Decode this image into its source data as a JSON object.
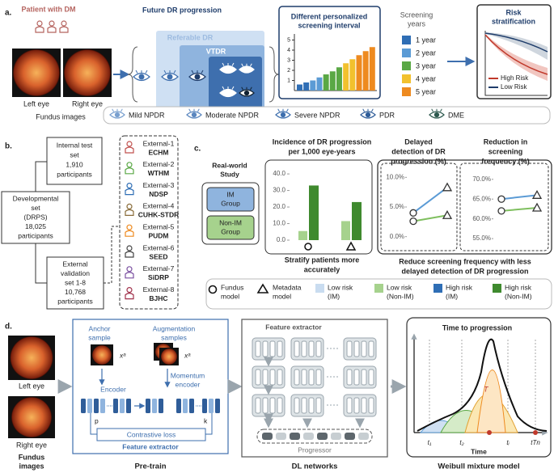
{
  "panel_a": {
    "label": "a.",
    "patient": "Patient with DM",
    "left_eye": "Left eye",
    "right_eye": "Right eye",
    "fundus": "Fundus images",
    "progression_title": "Future DR progression",
    "referable": "Referable DR",
    "vtdr": "VTDR",
    "interval_chart": {
      "title_lines": [
        "Different personalized",
        "screening interval"
      ],
      "ylim": [
        0,
        5.6
      ],
      "yticks": [
        1,
        2,
        3,
        4,
        5
      ],
      "values": [
        0.6,
        0.8,
        1.0,
        1.3,
        1.6,
        1.9,
        2.3,
        2.7,
        3.1,
        3.5,
        3.9,
        4.3
      ],
      "colors": [
        "#2f6eb5",
        "#2f6eb5",
        "#5b9bd5",
        "#5b9bd5",
        "#5aa845",
        "#5aa845",
        "#5aa845",
        "#f2c12e",
        "#f2c12e",
        "#ee8a1f",
        "#ee8a1f",
        "#ee8a1f"
      ]
    },
    "legend_title_lines": [
      "Screening",
      "years"
    ],
    "legend": [
      {
        "label": "1 year",
        "color": "#2f6eb5"
      },
      {
        "label": "2 year",
        "color": "#5b9bd5"
      },
      {
        "label": "3 year",
        "color": "#5aa845"
      },
      {
        "label": "4 year",
        "color": "#f2c12e"
      },
      {
        "label": "5 year",
        "color": "#ee8a1f"
      }
    ],
    "risk_title_lines": [
      "Risk",
      "stratification"
    ],
    "risk_legend": [
      {
        "label": "High Risk",
        "color": "#c0392b"
      },
      {
        "label": "Low Risk",
        "color": "#1f3d6b"
      }
    ],
    "stages": [
      "Mild NPDR",
      "Moderate NPDR",
      "Severe NPDR",
      "PDR",
      "DME"
    ]
  },
  "panel_b": {
    "label": "b.",
    "developmental": [
      "Developmental",
      "set",
      "(DRPS)",
      "18,025",
      "participants"
    ],
    "internal": [
      "Internal test",
      "set",
      "1,910",
      "participants"
    ],
    "external": [
      "External",
      "validation",
      "set 1-8",
      "10,768",
      "participants"
    ],
    "sites": [
      {
        "name": "External-1",
        "code": "ECHM",
        "color": "#c0504d"
      },
      {
        "name": "External-2",
        "code": "WTHM",
        "color": "#5aa845"
      },
      {
        "name": "External-3",
        "code": "NDSP",
        "color": "#2f6eb5"
      },
      {
        "name": "External-4",
        "code": "CUHK-STDR",
        "color": "#8a6d3b"
      },
      {
        "name": "External-5",
        "code": "PUDM",
        "color": "#ee8a1f"
      },
      {
        "name": "External-6",
        "code": "SEED",
        "color": "#444444"
      },
      {
        "name": "External-7",
        "code": "SiDRP",
        "color": "#7a4fa0"
      },
      {
        "name": "External-8",
        "code": "BJHC",
        "color": "#a0304a"
      }
    ]
  },
  "panel_c": {
    "label": "c.",
    "study": [
      "Real-world",
      "Study"
    ],
    "im_group": [
      "IM",
      "Group"
    ],
    "nonim_group": [
      "Non-IM",
      "Group"
    ],
    "incidence": {
      "title_lines": [
        "Incidence of DR progression",
        "per 1,000 eye-years"
      ],
      "ylim": [
        0,
        42
      ],
      "yticks": [
        {
          "value": 0,
          "label": "0.0"
        },
        {
          "value": 10,
          "label": "10.0"
        },
        {
          "value": 20,
          "label": "20.0"
        },
        {
          "value": 30,
          "label": "30.0"
        },
        {
          "value": 40,
          "label": "40.0"
        }
      ],
      "low_non_im": [
        5.5,
        11.5
      ],
      "high_non_im": [
        33,
        23
      ]
    },
    "incidence_caption": [
      "Stratify patients more",
      "accurately"
    ],
    "delayed": {
      "title_lines": [
        "Delayed",
        "detection of DR",
        "progression (%)"
      ],
      "ylim": [
        -1,
        11
      ],
      "yticks": [
        {
          "value": 0,
          "label": "0.0%"
        },
        {
          "value": 5,
          "label": "5.0%"
        },
        {
          "value": 10,
          "label": "10.0%"
        }
      ],
      "im": [
        4,
        8.3
      ],
      "non_im": [
        2.6,
        3.6
      ]
    },
    "reduction": {
      "title_lines": [
        "Reduction in",
        "screening",
        "frequency (%)"
      ],
      "ylim": [
        54,
        72
      ],
      "yticks": [
        {
          "value": 55,
          "label": "55.0%"
        },
        {
          "value": 60,
          "label": "60.0%"
        },
        {
          "value": 65,
          "label": "65.0%"
        },
        {
          "value": 70,
          "label": "70.0%"
        }
      ],
      "im": [
        65,
        66
      ],
      "non_im": [
        62,
        62.8
      ]
    },
    "caption": [
      "Reduce screening frequency with less",
      "delayed detection of DR progression"
    ],
    "legend": {
      "fundus": [
        "Fundus",
        "model"
      ],
      "metadata": [
        "Metadata",
        "model"
      ],
      "items": [
        {
          "label_lines": [
            "Low risk",
            "(IM)"
          ],
          "color": "#c9dcf0"
        },
        {
          "label_lines": [
            "Low risk",
            "(Non-IM)"
          ],
          "color": "#a6d28d"
        },
        {
          "label_lines": [
            "High risk",
            "(IM)"
          ],
          "color": "#2f6eb5"
        },
        {
          "label_lines": [
            "High risk",
            "(Non-IM)"
          ],
          "color": "#3f8a2e"
        }
      ]
    }
  },
  "panel_d": {
    "label": "d.",
    "left_eye": "Left eye",
    "right_eye": "Right eye",
    "fundus": [
      "Fundus",
      "images"
    ],
    "pretrain": {
      "anchor": [
        "Anchor",
        "sample"
      ],
      "augmentation": [
        "Augmentation",
        "samples"
      ],
      "x_anchor": "xᵃ",
      "x_aug": "xᵃ",
      "encoder": "Encoder",
      "momentum": [
        "Momentum",
        "encoder"
      ],
      "p": "p",
      "k": "k",
      "loss": "Contrastive loss",
      "extractor": "Feature extractor",
      "caption": "Pre-train"
    },
    "dl": {
      "extractor": "Feature extractor",
      "progressor": "Progressor",
      "caption": "DL networks"
    },
    "weibull": {
      "title": "Time to progression",
      "x_label": "Time",
      "t_labels": [
        "t₁",
        "t₂",
        "tᵢ",
        "tTn"
      ],
      "tau": "T",
      "caption": "Weibull mixture model"
    }
  }
}
